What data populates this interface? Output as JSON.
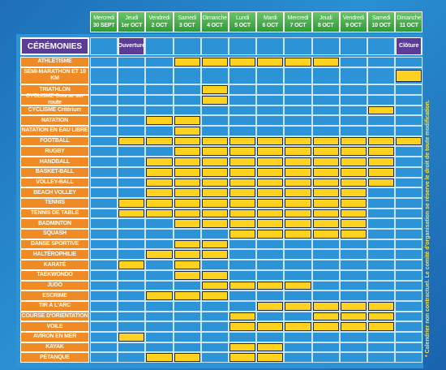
{
  "header": {
    "days": [
      {
        "day": "Mercredi",
        "date": "30 SEPT"
      },
      {
        "day": "Jeudi",
        "date": "1er OCT"
      },
      {
        "day": "Vendredi",
        "date": "2 OCT"
      },
      {
        "day": "Samedi",
        "date": "3 OCT"
      },
      {
        "day": "Dimanche",
        "date": "4 OCT"
      },
      {
        "day": "Lundi",
        "date": "5 OCT"
      },
      {
        "day": "Mardi",
        "date": "6 OCT"
      },
      {
        "day": "Mercredi",
        "date": "7 OCT"
      },
      {
        "day": "Jeudi",
        "date": "8 OCT"
      },
      {
        "day": "Vendredi",
        "date": "9 OCT"
      },
      {
        "day": "Samedi",
        "date": "10 OCT"
      },
      {
        "day": "Dimanche",
        "date": "11 OCT"
      }
    ]
  },
  "ceremonies": {
    "label": "CÉRÉMONIES",
    "events": [
      {
        "label": "Ouverture",
        "day": 1
      },
      {
        "label": "Clôture",
        "day": 11
      }
    ]
  },
  "sports": [
    {
      "name": "ATHLÉTISME",
      "days": [
        3,
        4,
        5,
        6,
        7,
        8
      ]
    },
    {
      "name": "SEMI-MARATHON ET 10 KM",
      "days": [
        11
      ]
    },
    {
      "name": "TRIATHLON",
      "days": [
        4
      ]
    },
    {
      "name": "CYCLISME Course sur route",
      "days": [
        4
      ]
    },
    {
      "name": "CYCLISME Critérium",
      "days": [
        10
      ]
    },
    {
      "name": "NATATION",
      "days": [
        2,
        3
      ]
    },
    {
      "name": "NATATION EN EAU LIBRE",
      "days": [
        3
      ]
    },
    {
      "name": "FOOTBALL",
      "days": [
        1,
        2,
        3,
        4,
        5,
        6,
        7,
        8,
        9,
        10,
        11
      ]
    },
    {
      "name": "RUGBY",
      "days": [
        3,
        4,
        5,
        6,
        7,
        8,
        9,
        10
      ]
    },
    {
      "name": "HANDBALL",
      "days": [
        2,
        3,
        4,
        5,
        6,
        7,
        8,
        9,
        10
      ]
    },
    {
      "name": "BASKET-BALL",
      "days": [
        2,
        3,
        4,
        5,
        6,
        7,
        8,
        9,
        10
      ]
    },
    {
      "name": "VOLLEY-BALL",
      "days": [
        2,
        3,
        4,
        5,
        6,
        7,
        8,
        9,
        10
      ]
    },
    {
      "name": "BEACH VOLLEY",
      "days": [
        2,
        3,
        4,
        5,
        6,
        7,
        8,
        9
      ]
    },
    {
      "name": "TENNIS",
      "days": [
        1,
        2,
        3,
        4,
        5,
        6,
        7,
        8,
        9
      ]
    },
    {
      "name": "TENNIS DE TABLE",
      "days": [
        1,
        2,
        3,
        4,
        5,
        6,
        7,
        8,
        9
      ]
    },
    {
      "name": "BADMINTON",
      "days": [
        3,
        4,
        5,
        6,
        7,
        8,
        9
      ]
    },
    {
      "name": "SQUASH",
      "days": [
        5,
        6,
        7,
        8,
        9
      ]
    },
    {
      "name": "DANSE SPORTIVE",
      "days": [
        3,
        4
      ]
    },
    {
      "name": "HALTÉROPHILIE",
      "days": [
        2,
        3,
        4
      ]
    },
    {
      "name": "KARATÉ",
      "days": [
        1,
        3
      ]
    },
    {
      "name": "TAEKWONDO",
      "days": [
        3,
        4
      ]
    },
    {
      "name": "JUDO",
      "days": [
        4,
        5,
        6,
        7
      ]
    },
    {
      "name": "ESCRIME",
      "days": [
        2,
        3,
        4
      ]
    },
    {
      "name": "TIR À L'ARC",
      "days": [
        6,
        7,
        8,
        9,
        10
      ]
    },
    {
      "name": "COURSE D'ORIENTATION",
      "days": [
        5,
        8,
        9,
        10
      ]
    },
    {
      "name": "VOILE",
      "days": [
        5,
        6,
        7,
        8,
        9,
        10
      ]
    },
    {
      "name": "AVIRON EN MER",
      "days": [
        1
      ]
    },
    {
      "name": "KAYAK",
      "days": [
        5,
        6
      ]
    },
    {
      "name": "PÉTANQUE",
      "days": [
        2,
        3,
        5,
        6
      ]
    }
  ],
  "note": "* Calendrier non contractuel. Le comité d'organisation se réserve le droit de toute modification."
}
